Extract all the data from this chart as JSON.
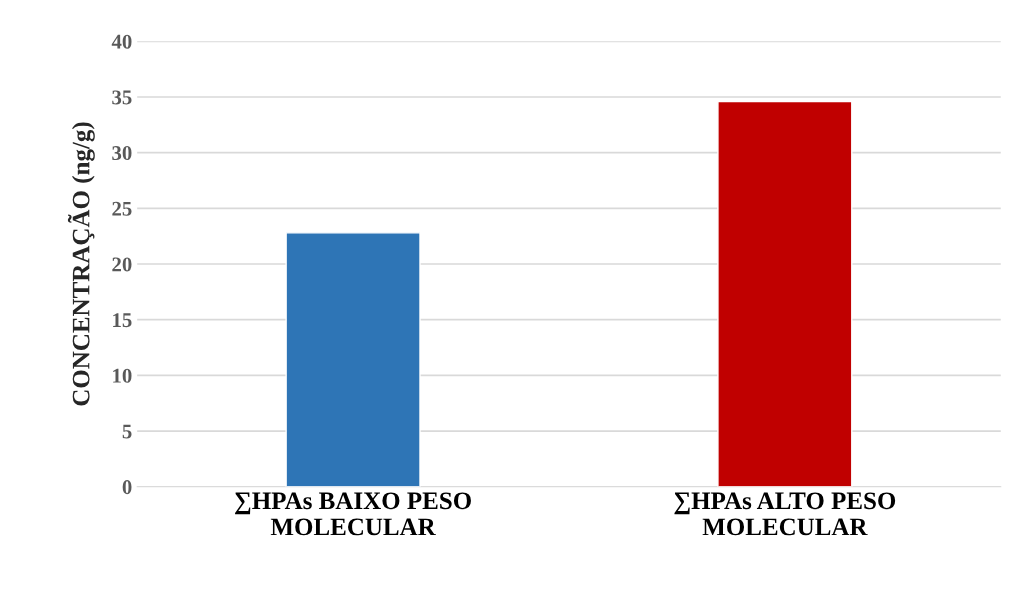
{
  "chart_data": {
    "type": "bar",
    "ylabel": "CONCENTRAÇÃO (ng/g)",
    "categories": [
      "∑HPAs BAIXO PESO\nMOLECULAR",
      "∑HPAs ALTO PESO\nMOLECULAR"
    ],
    "values": [
      22.8,
      34.6
    ],
    "colors": [
      "#2e75b6",
      "#c00000"
    ],
    "ylim": [
      0,
      40
    ],
    "yticks": [
      0,
      5,
      10,
      15,
      20,
      25,
      30,
      35,
      40
    ],
    "grid": "y"
  }
}
